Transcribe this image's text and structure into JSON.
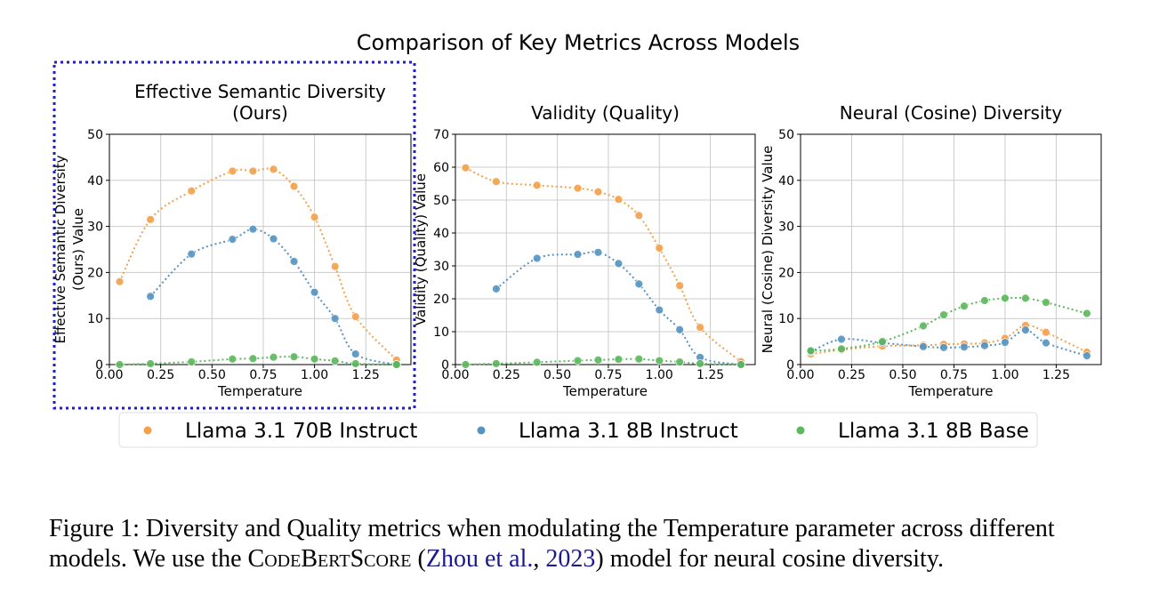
{
  "figure": {
    "suptitle": "Comparison of Key Metrics Across Models",
    "colors": {
      "Llama 3.1 70B Instruct": "#f5a04b",
      "Llama 3.1 8B Instruct": "#5594c2",
      "Llama 3.1 8B Base": "#5cb85c",
      "highlight_box": "#1f1fbf"
    },
    "legend": [
      "Llama 3.1 70B Instruct",
      "Llama 3.1 8B Instruct",
      "Llama 3.1 8B Base"
    ]
  },
  "chart_data": [
    {
      "type": "line",
      "title": "Effective Semantic Diversity\n(Ours)",
      "xlabel": "Temperature",
      "ylabel": "Effective Semantic Diversity\n(Ours) Value",
      "xlim": [
        0,
        1.47
      ],
      "ylim": [
        0,
        50
      ],
      "xticks": [
        "0.00",
        "0.25",
        "0.50",
        "0.75",
        "1.00",
        "1.25"
      ],
      "yticks": [
        "0",
        "10",
        "20",
        "30",
        "40",
        "50"
      ],
      "highlighted": true,
      "series": [
        {
          "name": "Llama 3.1 70B Instruct",
          "x": [
            0.05,
            0.2,
            0.4,
            0.6,
            0.7,
            0.8,
            0.9,
            1.0,
            1.1,
            1.2,
            1.4
          ],
          "y": [
            18,
            31.5,
            37.7,
            42,
            42,
            42.4,
            38.7,
            32,
            21.3,
            10.4,
            1
          ]
        },
        {
          "name": "Llama 3.1 8B Instruct",
          "x": [
            0.2,
            0.4,
            0.6,
            0.7,
            0.8,
            0.9,
            1.0,
            1.1,
            1.2,
            1.4
          ],
          "y": [
            14.8,
            24,
            27.2,
            29.4,
            27.3,
            22.4,
            15.7,
            10,
            2.3,
            0
          ]
        },
        {
          "name": "Llama 3.1 8B Base",
          "x": [
            0.05,
            0.2,
            0.4,
            0.6,
            0.7,
            0.8,
            0.9,
            1.0,
            1.1,
            1.2,
            1.4
          ],
          "y": [
            0,
            0.2,
            0.6,
            1.2,
            1.3,
            1.6,
            1.7,
            1.2,
            0.8,
            0.2,
            0
          ]
        }
      ]
    },
    {
      "type": "line",
      "title": "Validity (Quality)",
      "xlabel": "Temperature",
      "ylabel": "Validity (Quality) Value",
      "xlim": [
        0,
        1.47
      ],
      "ylim": [
        0,
        70
      ],
      "xticks": [
        "0.00",
        "0.25",
        "0.50",
        "0.75",
        "1.00",
        "1.25"
      ],
      "yticks": [
        "0",
        "10",
        "20",
        "30",
        "40",
        "50",
        "60",
        "70"
      ],
      "series": [
        {
          "name": "Llama 3.1 70B Instruct",
          "x": [
            0.05,
            0.2,
            0.4,
            0.6,
            0.7,
            0.8,
            0.9,
            1.0,
            1.1,
            1.2,
            1.4
          ],
          "y": [
            59.8,
            55.6,
            54.5,
            53.6,
            52.5,
            50.2,
            45.3,
            35.4,
            24,
            11.3,
            0.9
          ]
        },
        {
          "name": "Llama 3.1 8B Instruct",
          "x": [
            0.2,
            0.4,
            0.6,
            0.7,
            0.8,
            0.9,
            1.0,
            1.1,
            1.2,
            1.4
          ],
          "y": [
            23,
            32.3,
            33.5,
            34.1,
            30.7,
            24.5,
            16.6,
            10.6,
            2.2,
            0
          ]
        },
        {
          "name": "Llama 3.1 8B Base",
          "x": [
            0.05,
            0.2,
            0.4,
            0.6,
            0.7,
            0.8,
            0.9,
            1.0,
            1.1,
            1.2,
            1.4
          ],
          "y": [
            0,
            0.3,
            0.7,
            1.2,
            1.4,
            1.6,
            1.7,
            1.2,
            0.8,
            0.3,
            0
          ]
        }
      ]
    },
    {
      "type": "line",
      "title": "Neural (Cosine) Diversity",
      "xlabel": "Temperature",
      "ylabel": "Neural (Cosine) Diversity Value",
      "xlim": [
        0,
        1.47
      ],
      "ylim": [
        0,
        50
      ],
      "xticks": [
        "0.00",
        "0.25",
        "0.50",
        "0.75",
        "1.00",
        "1.25"
      ],
      "yticks": [
        "0",
        "10",
        "20",
        "30",
        "40",
        "50"
      ],
      "series": [
        {
          "name": "Llama 3.1 70B Instruct",
          "x": [
            0.05,
            0.2,
            0.4,
            0.6,
            0.7,
            0.8,
            0.9,
            1.0,
            1.1,
            1.2,
            1.4
          ],
          "y": [
            2.3,
            3.2,
            4,
            4.2,
            4.4,
            4.5,
            4.7,
            5.7,
            8.5,
            7,
            2.7
          ]
        },
        {
          "name": "Llama 3.1 8B Instruct",
          "x": [
            0.05,
            0.2,
            0.4,
            0.6,
            0.7,
            0.8,
            0.9,
            1.0,
            1.1,
            1.2,
            1.4
          ],
          "y": [
            2.8,
            5.5,
            4.7,
            3.9,
            3.7,
            3.8,
            4.1,
            4.8,
            7.5,
            4.7,
            1.9
          ]
        },
        {
          "name": "Llama 3.1 8B Base",
          "x": [
            0.05,
            0.2,
            0.4,
            0.6,
            0.7,
            0.8,
            0.9,
            1.0,
            1.1,
            1.2,
            1.4
          ],
          "y": [
            3,
            3.4,
            5,
            8.4,
            10.8,
            12.7,
            13.9,
            14.4,
            14.4,
            13.5,
            11.1
          ]
        }
      ]
    }
  ],
  "caption": {
    "prefix": "Figure 1: Diversity and Quality metrics when modulating the Temperature parameter across different models. We use the ",
    "sc_c1": "C",
    "sc_1": "ode",
    "sc_c2": "B",
    "sc_2": "ert",
    "sc_c3": "S",
    "sc_3": "core",
    "paren_open": " (",
    "cite_author": "Zhou et al.",
    "cite_sep": ", ",
    "cite_year": "2023",
    "suffix": ") model for neural cosine diversity."
  }
}
